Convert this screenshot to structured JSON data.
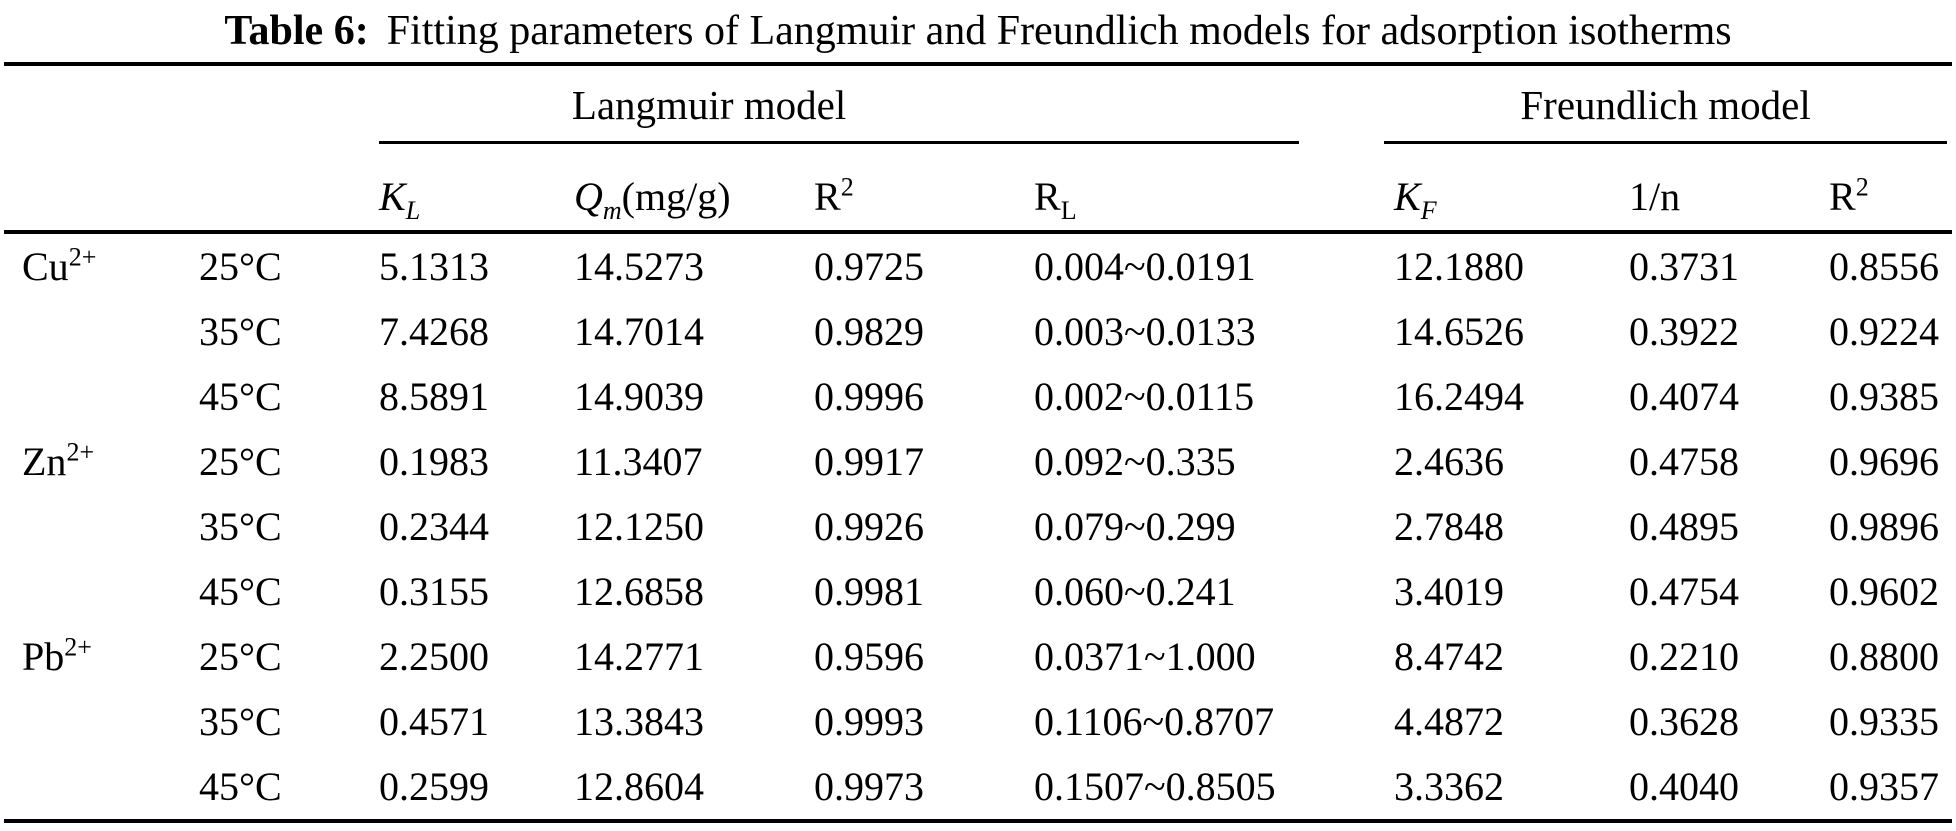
{
  "title": {
    "label": "Table 6:",
    "text": "Fitting parameters of Langmuir and Freundlich models for adsorption isotherms"
  },
  "groups": {
    "langmuir": "Langmuir model",
    "freundlich": "Freundlich model"
  },
  "columns": {
    "kl": {
      "base": "K",
      "sub": "L"
    },
    "qm": {
      "base": "Q",
      "sub": "m",
      "suffix": "(mg/g)"
    },
    "r2": {
      "base": "R",
      "sup": "2"
    },
    "rl": {
      "base": "R",
      "sub": "L"
    },
    "kf": {
      "base": "K",
      "sub": "F"
    },
    "ninv": {
      "label": "1/n"
    }
  },
  "rows": [
    {
      "ion": "Cu",
      "ion_sup": "2+",
      "temp": "25°C",
      "kl": "5.1313",
      "qm": "14.5273",
      "r2l": "0.9725",
      "rl": "0.004~0.0191",
      "kf": "12.1880",
      "ninv": "0.3731",
      "r2f": "0.8556"
    },
    {
      "temp": "35°C",
      "kl": "7.4268",
      "qm": "14.7014",
      "r2l": "0.9829",
      "rl": "0.003~0.0133",
      "kf": "14.6526",
      "ninv": "0.3922",
      "r2f": "0.9224"
    },
    {
      "temp": "45°C",
      "kl": "8.5891",
      "qm": "14.9039",
      "r2l": "0.9996",
      "rl": "0.002~0.0115",
      "kf": "16.2494",
      "ninv": "0.4074",
      "r2f": "0.9385"
    },
    {
      "ion": "Zn",
      "ion_sup": "2+",
      "temp": "25°C",
      "kl": "0.1983",
      "qm": "11.3407",
      "r2l": "0.9917",
      "rl": "0.092~0.335",
      "kf": "2.4636",
      "ninv": "0.4758",
      "r2f": "0.9696"
    },
    {
      "temp": "35°C",
      "kl": "0.2344",
      "qm": "12.1250",
      "r2l": "0.9926",
      "rl": "0.079~0.299",
      "kf": "2.7848",
      "ninv": "0.4895",
      "r2f": "0.9896"
    },
    {
      "temp": "45°C",
      "kl": "0.3155",
      "qm": "12.6858",
      "r2l": "0.9981",
      "rl": "0.060~0.241",
      "kf": "3.4019",
      "ninv": "0.4754",
      "r2f": "0.9602"
    },
    {
      "ion": "Pb",
      "ion_sup": "2+",
      "temp": "25°C",
      "kl": "2.2500",
      "qm": "14.2771",
      "r2l": "0.9596",
      "rl": "0.0371~1.000",
      "kf": "8.4742",
      "ninv": "0.2210",
      "r2f": "0.8800"
    },
    {
      "temp": "35°C",
      "kl": "0.4571",
      "qm": "13.3843",
      "r2l": "0.9993",
      "rl": "0.1106~0.8707",
      "kf": "4.4872",
      "ninv": "0.3628",
      "r2f": "0.9335"
    },
    {
      "temp": "45°C",
      "kl": "0.2599",
      "qm": "12.8604",
      "r2l": "0.9973",
      "rl": "0.1507~0.8505",
      "kf": "3.3362",
      "ninv": "0.4040",
      "r2f": "0.9357"
    }
  ]
}
